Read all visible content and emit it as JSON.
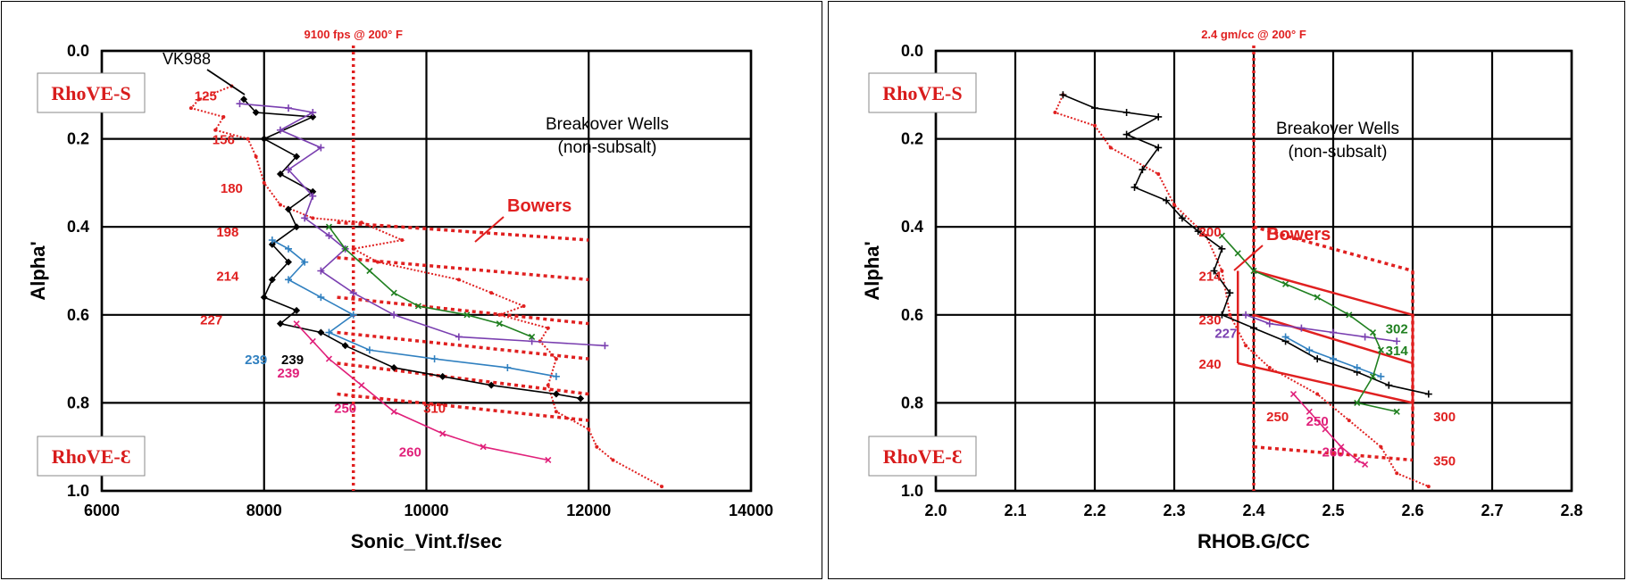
{
  "chart_data": [
    {
      "type": "line",
      "xlabel": "Sonic_Vint.f/sec",
      "ylabel": "Alpha'",
      "xlim": [
        6000,
        14000
      ],
      "ylim": [
        0.0,
        1.0
      ],
      "y_inverted": true,
      "xticks": [
        "6000",
        "8000",
        "10000",
        "12000",
        "14000"
      ],
      "yticks": [
        "0.0",
        "0.2",
        "0.4",
        "0.6",
        "0.8",
        "1.0"
      ],
      "grid": true,
      "reference_line": {
        "x": 9100,
        "label": "9100 fps @ 200° F"
      },
      "annotations": {
        "well": "VK988",
        "title": "Breakover Wells",
        "subtitle": "(non-subsalt)",
        "bowers": "Bowers",
        "top_box": "RhoVE-S",
        "bottom_box": "RhoVE-Ɛ"
      },
      "temp_labels": [
        {
          "text": "125",
          "x": 7280,
          "y": 0.1,
          "color": "#e02020"
        },
        {
          "text": "156",
          "x": 7500,
          "y": 0.2,
          "color": "#e02020"
        },
        {
          "text": "180",
          "x": 7600,
          "y": 0.31,
          "color": "#e02020"
        },
        {
          "text": "198",
          "x": 7550,
          "y": 0.41,
          "color": "#e02020"
        },
        {
          "text": "214",
          "x": 7550,
          "y": 0.51,
          "color": "#e02020"
        },
        {
          "text": "227",
          "x": 7350,
          "y": 0.61,
          "color": "#e02020"
        },
        {
          "text": "239",
          "x": 8350,
          "y": 0.7,
          "color": "#000000"
        },
        {
          "text": "239",
          "x": 7900,
          "y": 0.7,
          "color": "#3080c0"
        },
        {
          "text": "239",
          "x": 8300,
          "y": 0.73,
          "color": "#e0207a"
        },
        {
          "text": "250",
          "x": 9000,
          "y": 0.81,
          "color": "#e0207a"
        },
        {
          "text": "260",
          "x": 9800,
          "y": 0.91,
          "color": "#e0207a"
        },
        {
          "text": "310",
          "x": 10100,
          "y": 0.81,
          "color": "#e02020"
        }
      ],
      "series": [
        {
          "color": "#e02020",
          "marker": "dot",
          "points": [
            [
              7600,
              0.08
            ],
            [
              7200,
              0.11
            ],
            [
              7100,
              0.13
            ],
            [
              7500,
              0.15
            ],
            [
              7400,
              0.18
            ],
            [
              7800,
              0.2
            ],
            [
              7900,
              0.24
            ],
            [
              8000,
              0.3
            ],
            [
              8200,
              0.35
            ],
            [
              8600,
              0.38
            ],
            [
              9200,
              0.39
            ],
            [
              9700,
              0.43
            ],
            [
              9100,
              0.45
            ],
            [
              9400,
              0.48
            ],
            [
              10400,
              0.52
            ],
            [
              10800,
              0.55
            ],
            [
              11200,
              0.58
            ],
            [
              10900,
              0.6
            ],
            [
              11500,
              0.63
            ],
            [
              11400,
              0.66
            ],
            [
              11600,
              0.7
            ],
            [
              11500,
              0.76
            ],
            [
              11600,
              0.82
            ],
            [
              12000,
              0.86
            ],
            [
              12100,
              0.9
            ],
            [
              12300,
              0.93
            ],
            [
              12900,
              0.99
            ]
          ]
        },
        {
          "color": "#000000",
          "marker": "diamond",
          "points": [
            [
              7750,
              0.11
            ],
            [
              7900,
              0.14
            ],
            [
              8600,
              0.15
            ],
            [
              8000,
              0.2
            ],
            [
              8400,
              0.24
            ],
            [
              8200,
              0.28
            ],
            [
              8600,
              0.32
            ],
            [
              8300,
              0.36
            ],
            [
              8400,
              0.4
            ],
            [
              8100,
              0.44
            ],
            [
              8300,
              0.48
            ],
            [
              8100,
              0.52
            ],
            [
              8000,
              0.56
            ],
            [
              8400,
              0.59
            ],
            [
              8200,
              0.62
            ],
            [
              8700,
              0.64
            ],
            [
              9000,
              0.67
            ],
            [
              9600,
              0.72
            ],
            [
              10200,
              0.74
            ],
            [
              10800,
              0.76
            ],
            [
              11600,
              0.78
            ],
            [
              11900,
              0.79
            ]
          ]
        },
        {
          "color": "#7a3fb0",
          "marker": "plus",
          "points": [
            [
              7700,
              0.12
            ],
            [
              8300,
              0.13
            ],
            [
              8600,
              0.14
            ],
            [
              8200,
              0.18
            ],
            [
              8700,
              0.22
            ],
            [
              8300,
              0.27
            ],
            [
              8600,
              0.33
            ],
            [
              8500,
              0.38
            ],
            [
              8800,
              0.42
            ],
            [
              9000,
              0.45
            ],
            [
              8700,
              0.5
            ],
            [
              9100,
              0.55
            ],
            [
              9600,
              0.6
            ],
            [
              10400,
              0.65
            ],
            [
              11300,
              0.66
            ],
            [
              12200,
              0.67
            ]
          ]
        },
        {
          "color": "#3080c0",
          "marker": "plus",
          "points": [
            [
              8100,
              0.43
            ],
            [
              8300,
              0.45
            ],
            [
              8500,
              0.48
            ],
            [
              8300,
              0.52
            ],
            [
              8700,
              0.56
            ],
            [
              9100,
              0.6
            ],
            [
              8800,
              0.64
            ],
            [
              9300,
              0.68
            ],
            [
              10100,
              0.7
            ],
            [
              11000,
              0.72
            ],
            [
              11600,
              0.74
            ]
          ]
        },
        {
          "color": "#208020",
          "marker": "cross",
          "points": [
            [
              8800,
              0.4
            ],
            [
              9000,
              0.45
            ],
            [
              9300,
              0.5
            ],
            [
              9600,
              0.55
            ],
            [
              9900,
              0.58
            ],
            [
              10500,
              0.6
            ],
            [
              10900,
              0.62
            ],
            [
              11300,
              0.65
            ]
          ]
        },
        {
          "color": "#e0207a",
          "marker": "cross",
          "points": [
            [
              8400,
              0.62
            ],
            [
              8600,
              0.66
            ],
            [
              8800,
              0.7
            ],
            [
              9200,
              0.76
            ],
            [
              9600,
              0.82
            ],
            [
              10200,
              0.87
            ],
            [
              10700,
              0.9
            ],
            [
              11500,
              0.93
            ]
          ]
        }
      ],
      "bowers_lines": [
        {
          "points": [
            [
              8900,
              0.39
            ],
            [
              12000,
              0.43
            ]
          ]
        },
        {
          "points": [
            [
              8900,
              0.47
            ],
            [
              12000,
              0.52
            ]
          ]
        },
        {
          "points": [
            [
              8900,
              0.56
            ],
            [
              12000,
              0.62
            ]
          ]
        },
        {
          "points": [
            [
              8900,
              0.64
            ],
            [
              12000,
              0.7
            ]
          ]
        },
        {
          "points": [
            [
              8900,
              0.71
            ],
            [
              12000,
              0.78
            ]
          ]
        },
        {
          "points": [
            [
              8900,
              0.78
            ],
            [
              12000,
              0.84
            ]
          ]
        }
      ]
    },
    {
      "type": "line",
      "xlabel": "RHOB.G/CC",
      "ylabel": "Alpha'",
      "xlim": [
        2.0,
        2.8
      ],
      "ylim": [
        0.0,
        1.0
      ],
      "y_inverted": true,
      "xticks": [
        "2.0",
        "2.1",
        "2.2",
        "2.3",
        "2.4",
        "2.5",
        "2.6",
        "2.7",
        "2.8"
      ],
      "yticks": [
        "0.0",
        "0.2",
        "0.4",
        "0.6",
        "0.8",
        "1.0"
      ],
      "grid": true,
      "reference_line": {
        "x": 2.4,
        "label": "2.4 gm/cc @ 200° F"
      },
      "annotations": {
        "title": "Breakover Wells",
        "subtitle": "(non-subsalt)",
        "bowers": "Bowers",
        "top_box": "RhoVE-S",
        "bottom_box": "RhoVE-Ɛ"
      },
      "temp_labels": [
        {
          "text": "200",
          "x": 2.345,
          "y": 0.41,
          "color": "#e02020"
        },
        {
          "text": "214",
          "x": 2.345,
          "y": 0.51,
          "color": "#e02020"
        },
        {
          "text": "230",
          "x": 2.345,
          "y": 0.61,
          "color": "#e02020"
        },
        {
          "text": "227",
          "x": 2.365,
          "y": 0.64,
          "color": "#7a3fb0"
        },
        {
          "text": "240",
          "x": 2.345,
          "y": 0.71,
          "color": "#e02020"
        },
        {
          "text": "250",
          "x": 2.43,
          "y": 0.83,
          "color": "#e02020"
        },
        {
          "text": "250",
          "x": 2.48,
          "y": 0.84,
          "color": "#e0207a"
        },
        {
          "text": "260",
          "x": 2.5,
          "y": 0.91,
          "color": "#e0207a"
        },
        {
          "text": "300",
          "x": 2.64,
          "y": 0.83,
          "color": "#e02020"
        },
        {
          "text": "350",
          "x": 2.64,
          "y": 0.93,
          "color": "#e02020"
        },
        {
          "text": "302",
          "x": 2.58,
          "y": 0.63,
          "color": "#208020"
        },
        {
          "text": "314",
          "x": 2.58,
          "y": 0.68,
          "color": "#208020"
        }
      ],
      "series": [
        {
          "color": "#e02020",
          "marker": "dot",
          "points": [
            [
              2.16,
              0.1
            ],
            [
              2.15,
              0.14
            ],
            [
              2.2,
              0.17
            ],
            [
              2.22,
              0.22
            ],
            [
              2.28,
              0.28
            ],
            [
              2.3,
              0.35
            ],
            [
              2.34,
              0.42
            ],
            [
              2.36,
              0.5
            ],
            [
              2.37,
              0.6
            ],
            [
              2.39,
              0.67
            ],
            [
              2.42,
              0.72
            ],
            [
              2.48,
              0.78
            ],
            [
              2.52,
              0.84
            ],
            [
              2.56,
              0.9
            ],
            [
              2.58,
              0.96
            ],
            [
              2.62,
              0.99
            ]
          ]
        },
        {
          "color": "#000000",
          "marker": "plus",
          "points": [
            [
              2.16,
              0.1
            ],
            [
              2.2,
              0.13
            ],
            [
              2.24,
              0.14
            ],
            [
              2.28,
              0.15
            ],
            [
              2.24,
              0.19
            ],
            [
              2.28,
              0.22
            ],
            [
              2.26,
              0.27
            ],
            [
              2.25,
              0.31
            ],
            [
              2.29,
              0.34
            ],
            [
              2.31,
              0.38
            ],
            [
              2.33,
              0.41
            ],
            [
              2.36,
              0.45
            ],
            [
              2.35,
              0.5
            ],
            [
              2.37,
              0.55
            ],
            [
              2.36,
              0.6
            ],
            [
              2.4,
              0.63
            ],
            [
              2.44,
              0.66
            ],
            [
              2.48,
              0.7
            ],
            [
              2.53,
              0.73
            ],
            [
              2.57,
              0.76
            ],
            [
              2.62,
              0.78
            ]
          ]
        },
        {
          "color": "#7a3fb0",
          "marker": "plus",
          "points": [
            [
              2.39,
              0.6
            ],
            [
              2.42,
              0.62
            ],
            [
              2.46,
              0.63
            ],
            [
              2.5,
              0.64
            ],
            [
              2.54,
              0.65
            ],
            [
              2.58,
              0.66
            ]
          ]
        },
        {
          "color": "#3080c0",
          "marker": "plus",
          "points": [
            [
              2.44,
              0.65
            ],
            [
              2.47,
              0.68
            ],
            [
              2.5,
              0.7
            ],
            [
              2.53,
              0.72
            ],
            [
              2.56,
              0.74
            ]
          ]
        },
        {
          "color": "#208020",
          "marker": "cross",
          "points": [
            [
              2.36,
              0.42
            ],
            [
              2.38,
              0.46
            ],
            [
              2.4,
              0.5
            ],
            [
              2.44,
              0.53
            ],
            [
              2.48,
              0.56
            ],
            [
              2.52,
              0.6
            ],
            [
              2.55,
              0.64
            ],
            [
              2.56,
              0.68
            ],
            [
              2.55,
              0.74
            ],
            [
              2.53,
              0.8
            ],
            [
              2.58,
              0.82
            ]
          ]
        },
        {
          "color": "#e0207a",
          "marker": "cross",
          "points": [
            [
              2.45,
              0.78
            ],
            [
              2.47,
              0.82
            ],
            [
              2.49,
              0.86
            ],
            [
              2.51,
              0.9
            ],
            [
              2.53,
              0.93
            ],
            [
              2.54,
              0.94
            ]
          ]
        }
      ],
      "bowers_lines": [
        {
          "points": [
            [
              2.4,
              0.4
            ],
            [
              2.6,
              0.5
            ]
          ]
        },
        {
          "points": [
            [
              2.6,
              0.5
            ],
            [
              2.6,
              0.9
            ]
          ]
        },
        {
          "points": [
            [
              2.4,
              0.9
            ],
            [
              2.6,
              0.93
            ]
          ]
        }
      ],
      "solid_lines": [
        {
          "points": [
            [
              2.4,
              0.5
            ],
            [
              2.6,
              0.6
            ]
          ]
        },
        {
          "points": [
            [
              2.4,
              0.6
            ],
            [
              2.6,
              0.71
            ]
          ]
        },
        {
          "points": [
            [
              2.38,
              0.71
            ],
            [
              2.6,
              0.8
            ]
          ]
        },
        {
          "points": [
            [
              2.6,
              0.6
            ],
            [
              2.6,
              0.82
            ]
          ]
        },
        {
          "points": [
            [
              2.38,
              0.5
            ],
            [
              2.38,
              0.71
            ]
          ]
        }
      ]
    }
  ]
}
